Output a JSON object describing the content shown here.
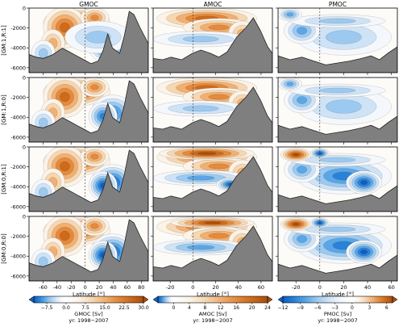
{
  "chart_data": {
    "type": "heatmap",
    "description_kind": "overturning streamfunction panels (filled contours over bathymetry)",
    "columns": [
      {
        "title": "GMOC",
        "xlim": [
          -80,
          90
        ],
        "xticks": [
          -60,
          -40,
          -20,
          0,
          20,
          40,
          60,
          80
        ]
      },
      {
        "title": "AMOC",
        "xlim": [
          -35,
          70
        ],
        "xticks": [
          -20,
          0,
          20,
          40,
          60
        ]
      },
      {
        "title": "PMOC",
        "xlim": [
          -35,
          65
        ],
        "xticks": [
          -20,
          0,
          20,
          40,
          60
        ]
      }
    ],
    "rows": [
      "[GM:1,R:1]",
      "[GM:1,R:0]",
      "[GM:0,R:1]",
      "[GM:0,R:0]"
    ],
    "ylim": [
      -6500,
      0
    ],
    "yticks": [
      0,
      -2000,
      -4000,
      -6000
    ],
    "xlabel": "Latitude [°]",
    "colorbars": [
      {
        "title": "GMOC [Sv]",
        "subtitle": "yr: 1998−2007",
        "vmin": -12.5,
        "vmax": 30,
        "ticks": [
          -7.5,
          0.0,
          7.5,
          15.0,
          22.5,
          30.0
        ]
      },
      {
        "title": "AMOC [Sv]",
        "subtitle": "yr: 1998−2007",
        "vmin": -4,
        "vmax": 24,
        "ticks": [
          0,
          4,
          8,
          12,
          16,
          20,
          24
        ]
      },
      {
        "title": "PMOC [Sv]",
        "subtitle": "yr: 1998−2007",
        "vmin": -12,
        "vmax": 7,
        "ticks": [
          -12,
          -9,
          -6,
          -3,
          0,
          3,
          6
        ]
      }
    ],
    "colors": {
      "negative": "#1e6fd0",
      "positive": "#e07a1f",
      "land": "#7f7f7f",
      "zero": "#ffffff"
    }
  }
}
